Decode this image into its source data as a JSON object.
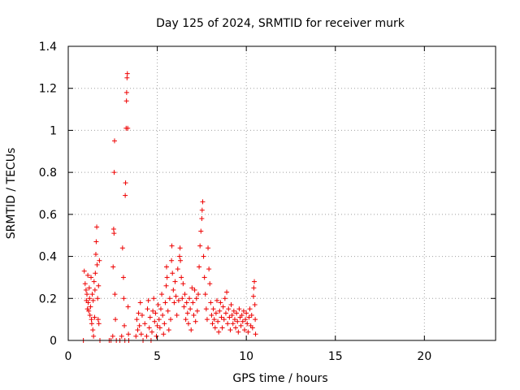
{
  "chart_data": {
    "type": "scatter",
    "title": "Day 125 of 2024, SRMTID for receiver murk",
    "xlabel": "GPS time / hours",
    "ylabel": "SRMTID / TECUs",
    "xlim": [
      0,
      24
    ],
    "ylim": [
      0,
      1.4
    ],
    "x_ticks": [
      "0",
      "5",
      "10",
      "15",
      "20"
    ],
    "y_ticks": [
      "0",
      "0.2",
      "0.4",
      "0.6",
      "0.8",
      "1",
      "1.2",
      "1.4"
    ],
    "grid": true,
    "marker": "plus",
    "color": "#ee0000",
    "series": [
      {
        "points": [
          [
            0.85,
            0.0
          ],
          [
            0.9,
            0.33
          ],
          [
            0.95,
            0.27
          ],
          [
            1.0,
            0.24
          ],
          [
            1.02,
            0.19
          ],
          [
            1.05,
            0.22
          ],
          [
            1.08,
            0.15
          ],
          [
            1.1,
            0.31
          ],
          [
            1.12,
            0.18
          ],
          [
            1.15,
            0.14
          ],
          [
            1.18,
            0.25
          ],
          [
            1.2,
            0.2
          ],
          [
            1.22,
            0.12
          ],
          [
            1.25,
            0.16
          ],
          [
            1.28,
            0.3
          ],
          [
            1.3,
            0.1
          ],
          [
            1.32,
            0.08
          ],
          [
            1.35,
            0.22
          ],
          [
            1.38,
            0.05
          ],
          [
            1.4,
            0.19
          ],
          [
            1.42,
            0.02
          ],
          [
            1.45,
            0.28
          ],
          [
            1.48,
            0.11
          ],
          [
            1.5,
            0.24
          ],
          [
            1.52,
            0.32
          ],
          [
            1.55,
            0.41
          ],
          [
            1.57,
            0.47
          ],
          [
            1.6,
            0.54
          ],
          [
            1.62,
            0.36
          ],
          [
            1.65,
            0.2
          ],
          [
            1.68,
            0.1
          ],
          [
            1.7,
            0.26
          ],
          [
            1.72,
            0.08
          ],
          [
            1.75,
            0.38
          ],
          [
            1.78,
            0.0
          ],
          [
            2.3,
            0.0
          ],
          [
            2.4,
            0.0
          ],
          [
            2.5,
            0.02
          ],
          [
            2.52,
            0.35
          ],
          [
            2.55,
            0.53
          ],
          [
            2.57,
            0.51
          ],
          [
            2.58,
            0.8
          ],
          [
            2.6,
            0.95
          ],
          [
            2.62,
            0.22
          ],
          [
            2.65,
            0.1
          ],
          [
            2.7,
            0.0
          ],
          [
            2.9,
            0.0
          ],
          [
            3.0,
            0.02
          ],
          [
            3.05,
            0.44
          ],
          [
            3.1,
            0.3
          ],
          [
            3.12,
            0.2
          ],
          [
            3.15,
            0.07
          ],
          [
            3.18,
            0.0
          ],
          [
            3.2,
            0.69
          ],
          [
            3.22,
            0.75
          ],
          [
            3.25,
            1.01
          ],
          [
            3.27,
            1.14
          ],
          [
            3.28,
            1.18
          ],
          [
            3.3,
            1.25
          ],
          [
            3.32,
            1.27
          ],
          [
            3.34,
            1.01
          ],
          [
            3.36,
            0.16
          ],
          [
            3.38,
            0.03
          ],
          [
            3.4,
            0.0
          ],
          [
            3.8,
            0.02
          ],
          [
            3.85,
            0.1
          ],
          [
            3.9,
            0.05
          ],
          [
            3.95,
            0.13
          ],
          [
            4.0,
            0.07
          ],
          [
            4.05,
            0.18
          ],
          [
            4.1,
            0.03
          ],
          [
            4.15,
            0.12
          ],
          [
            4.2,
            0.0
          ],
          [
            4.3,
            0.08
          ],
          [
            4.4,
            0.02
          ],
          [
            4.45,
            0.15
          ],
          [
            4.5,
            0.19
          ],
          [
            4.55,
            0.06
          ],
          [
            4.6,
            0.11
          ],
          [
            4.65,
            0.0
          ],
          [
            4.7,
            0.04
          ],
          [
            4.75,
            0.14
          ],
          [
            4.8,
            0.2
          ],
          [
            4.85,
            0.09
          ],
          [
            4.9,
            0.13
          ],
          [
            4.95,
            0.02
          ],
          [
            5.0,
            0.07
          ],
          [
            5.05,
            0.17
          ],
          [
            5.1,
            0.1
          ],
          [
            5.15,
            0.06
          ],
          [
            5.2,
            0.15
          ],
          [
            5.25,
            0.22
          ],
          [
            5.3,
            0.12
          ],
          [
            5.35,
            0.03
          ],
          [
            5.4,
            0.08
          ],
          [
            5.45,
            0.18
          ],
          [
            5.5,
            0.26
          ],
          [
            5.52,
            0.35
          ],
          [
            5.55,
            0.3
          ],
          [
            5.6,
            0.14
          ],
          [
            5.65,
            0.05
          ],
          [
            5.7,
            0.2
          ],
          [
            5.75,
            0.1
          ],
          [
            5.8,
            0.38
          ],
          [
            5.82,
            0.45
          ],
          [
            5.85,
            0.32
          ],
          [
            5.9,
            0.24
          ],
          [
            5.95,
            0.18
          ],
          [
            6.0,
            0.28
          ],
          [
            6.05,
            0.21
          ],
          [
            6.1,
            0.12
          ],
          [
            6.15,
            0.34
          ],
          [
            6.2,
            0.19
          ],
          [
            6.25,
            0.4
          ],
          [
            6.28,
            0.44
          ],
          [
            6.3,
            0.38
          ],
          [
            6.35,
            0.3
          ],
          [
            6.4,
            0.2
          ],
          [
            6.45,
            0.27
          ],
          [
            6.5,
            0.16
          ],
          [
            6.55,
            0.22
          ],
          [
            6.6,
            0.1
          ],
          [
            6.65,
            0.18
          ],
          [
            6.7,
            0.13
          ],
          [
            6.75,
            0.08
          ],
          [
            6.8,
            0.2
          ],
          [
            6.85,
            0.15
          ],
          [
            6.9,
            0.05
          ],
          [
            6.95,
            0.25
          ],
          [
            7.0,
            0.18
          ],
          [
            7.05,
            0.12
          ],
          [
            7.1,
            0.24
          ],
          [
            7.15,
            0.09
          ],
          [
            7.2,
            0.2
          ],
          [
            7.25,
            0.14
          ],
          [
            7.3,
            0.22
          ],
          [
            7.35,
            0.35
          ],
          [
            7.4,
            0.45
          ],
          [
            7.45,
            0.52
          ],
          [
            7.5,
            0.58
          ],
          [
            7.52,
            0.62
          ],
          [
            7.55,
            0.66
          ],
          [
            7.6,
            0.4
          ],
          [
            7.65,
            0.3
          ],
          [
            7.7,
            0.22
          ],
          [
            7.75,
            0.15
          ],
          [
            7.8,
            0.1
          ],
          [
            7.85,
            0.44
          ],
          [
            7.9,
            0.34
          ],
          [
            7.95,
            0.27
          ],
          [
            8.0,
            0.18
          ],
          [
            8.05,
            0.12
          ],
          [
            8.1,
            0.08
          ],
          [
            8.15,
            0.15
          ],
          [
            8.2,
            0.1
          ],
          [
            8.25,
            0.06
          ],
          [
            8.3,
            0.13
          ],
          [
            8.35,
            0.19
          ],
          [
            8.4,
            0.09
          ],
          [
            8.45,
            0.04
          ],
          [
            8.5,
            0.14
          ],
          [
            8.55,
            0.18
          ],
          [
            8.6,
            0.11
          ],
          [
            8.65,
            0.06
          ],
          [
            8.7,
            0.16
          ],
          [
            8.75,
            0.1
          ],
          [
            8.8,
            0.2
          ],
          [
            8.85,
            0.13
          ],
          [
            8.9,
            0.23
          ],
          [
            8.95,
            0.08
          ],
          [
            9.0,
            0.15
          ],
          [
            9.05,
            0.11
          ],
          [
            9.1,
            0.05
          ],
          [
            9.15,
            0.17
          ],
          [
            9.2,
            0.12
          ],
          [
            9.25,
            0.08
          ],
          [
            9.3,
            0.14
          ],
          [
            9.35,
            0.1
          ],
          [
            9.4,
            0.06
          ],
          [
            9.45,
            0.13
          ],
          [
            9.5,
            0.09
          ],
          [
            9.55,
            0.04
          ],
          [
            9.6,
            0.15
          ],
          [
            9.65,
            0.11
          ],
          [
            9.7,
            0.07
          ],
          [
            9.75,
            0.12
          ],
          [
            9.8,
            0.09
          ],
          [
            9.85,
            0.14
          ],
          [
            9.9,
            0.05
          ],
          [
            9.95,
            0.1
          ],
          [
            10.0,
            0.13
          ],
          [
            10.05,
            0.08
          ],
          [
            10.1,
            0.04
          ],
          [
            10.15,
            0.11
          ],
          [
            10.2,
            0.15
          ],
          [
            10.25,
            0.07
          ],
          [
            10.3,
            0.12
          ],
          [
            10.35,
            0.06
          ],
          [
            10.4,
            0.21
          ],
          [
            10.42,
            0.25
          ],
          [
            10.45,
            0.28
          ],
          [
            10.48,
            0.17
          ],
          [
            10.5,
            0.1
          ],
          [
            10.52,
            0.03
          ]
        ]
      }
    ]
  }
}
